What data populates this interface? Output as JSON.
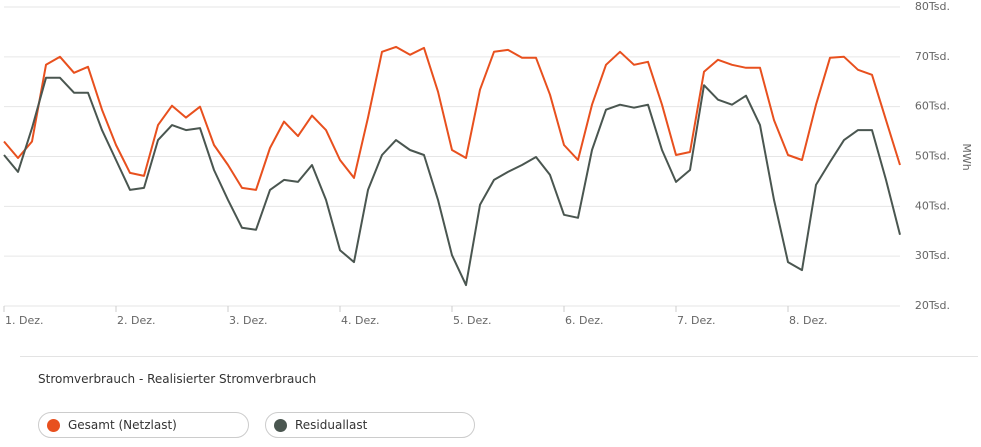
{
  "chart_data": {
    "type": "line",
    "x": [
      1,
      1.125,
      1.25,
      1.375,
      1.5,
      1.625,
      1.75,
      1.875,
      2,
      2.125,
      2.25,
      2.375,
      2.5,
      2.625,
      2.75,
      2.875,
      3,
      3.125,
      3.25,
      3.375,
      3.5,
      3.625,
      3.75,
      3.875,
      4,
      4.125,
      4.25,
      4.375,
      4.5,
      4.625,
      4.75,
      4.875,
      5,
      5.125,
      5.25,
      5.375,
      5.5,
      5.625,
      5.75,
      5.875,
      6,
      6.125,
      6.25,
      6.375,
      6.5,
      6.625,
      6.75,
      6.875,
      7,
      7.125,
      7.25,
      7.375,
      7.5,
      7.625,
      7.75,
      7.875,
      8,
      8.125,
      8.25,
      8.375,
      8.5,
      8.625,
      8.75,
      8.875,
      9
    ],
    "series": [
      {
        "name": "Gesamt (Netzlast)",
        "color": "#e8501e",
        "values": [
          53000,
          49700,
          53000,
          68400,
          70000,
          66800,
          68000,
          59400,
          52300,
          46700,
          46100,
          56300,
          60200,
          57800,
          60000,
          52300,
          48300,
          43700,
          43300,
          51700,
          57000,
          54100,
          58200,
          55300,
          49300,
          45700,
          57800,
          71000,
          72000,
          70400,
          71800,
          63000,
          51300,
          49700,
          63400,
          71000,
          71400,
          69800,
          69800,
          62400,
          52300,
          49300,
          60400,
          68400,
          71000,
          68400,
          69000,
          60400,
          50300,
          50900,
          67000,
          69400,
          68400,
          67800,
          67800,
          57300,
          50300,
          49300,
          60400,
          69800,
          70000,
          67400,
          66400,
          57300,
          48300
        ]
      },
      {
        "name": "Residuallast",
        "color": "#4a5650",
        "values": [
          50300,
          46900,
          55700,
          65800,
          65800,
          62800,
          62800,
          55300,
          49300,
          43300,
          43700,
          53300,
          56300,
          55300,
          55700,
          47300,
          41300,
          35700,
          35300,
          43300,
          45300,
          44900,
          48300,
          41300,
          31200,
          28800,
          43300,
          50300,
          53300,
          51300,
          50300,
          41300,
          30200,
          24200,
          40300,
          45300,
          46900,
          48300,
          49900,
          46300,
          38300,
          37700,
          51300,
          59400,
          60400,
          59800,
          60400,
          51300,
          44900,
          47300,
          64300,
          61400,
          60400,
          62200,
          56300,
          41300,
          28800,
          27200,
          44300,
          48900,
          53300,
          55300,
          55300,
          45300,
          34300
        ]
      }
    ],
    "xlim": [
      1,
      9
    ],
    "xticks": [
      {
        "value": 1,
        "label": "1. Dez."
      },
      {
        "value": 2,
        "label": "2. Dez."
      },
      {
        "value": 3,
        "label": "3. Dez."
      },
      {
        "value": 4,
        "label": "4. Dez."
      },
      {
        "value": 5,
        "label": "5. Dez."
      },
      {
        "value": 6,
        "label": "6. Dez."
      },
      {
        "value": 7,
        "label": "7. Dez."
      },
      {
        "value": 8,
        "label": "8. Dez."
      }
    ],
    "ylim": [
      20000,
      80000
    ],
    "yticks": [
      {
        "value": 20000,
        "label": "20Tsd."
      },
      {
        "value": 30000,
        "label": "30Tsd."
      },
      {
        "value": 40000,
        "label": "40Tsd."
      },
      {
        "value": 50000,
        "label": "50Tsd."
      },
      {
        "value": 60000,
        "label": "60Tsd."
      },
      {
        "value": 70000,
        "label": "70Tsd."
      },
      {
        "value": 80000,
        "label": "80Tsd."
      }
    ],
    "ylabel": "MWh",
    "grid": true,
    "legend_title": "Stromverbrauch - Realisierter Stromverbrauch"
  }
}
